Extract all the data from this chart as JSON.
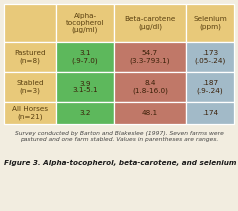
{
  "col_headers": [
    "Alpha-\ntocopherol\n(μg/ml)",
    "Beta-carotene\n(μg/dl)",
    "Selenium\n(ppm)"
  ],
  "row_headers": [
    "Pastured\n(n=8)",
    "Stabled\n(n=3)",
    "All Horses\n(n=21)"
  ],
  "cell_values": [
    [
      "3.1\n(.9-7.0)",
      "54.7\n(3.3-793.1)",
      ".173\n(.05-.24)"
    ],
    [
      "3.9\n3.1-5.1",
      "8.4\n(1.8-16.0)",
      ".187\n(.9-.24)"
    ],
    [
      "3.2",
      "48.1",
      ".174"
    ]
  ],
  "header_bg": "#E8C97A",
  "row_header_bg": "#E8C97A",
  "col1_bg": "#5DB85C",
  "col2_bg": "#C07868",
  "col3_bg": "#A2BAC8",
  "caption": "Survey conducted by Barton and Blakeslee (1997). Seven farms were\npastured and one farm stabled. Values in parentheses are ranges.",
  "figure_label": "Figure 3. Alpha-tocopherol, beta-carotene, and selenium status.",
  "bg_color": "#F2EDE0",
  "header_text_color": "#5A4010",
  "cell_text_color": "#3A2008",
  "caption_color": "#444444",
  "figure_label_color": "#1A1A1A"
}
